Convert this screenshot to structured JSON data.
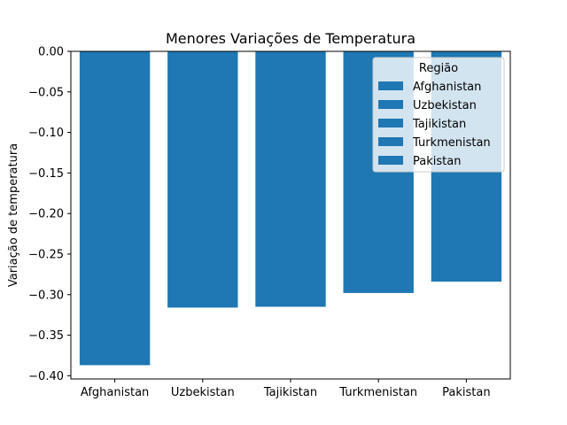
{
  "chart_data": {
    "type": "bar",
    "title": "Menores Variações de Temperatura",
    "xlabel": "",
    "ylabel": "Variação de temperatura",
    "categories": [
      "Afghanistan",
      "Uzbekistan",
      "Tajikistan",
      "Turkmenistan",
      "Pakistan"
    ],
    "values": [
      -0.387,
      -0.316,
      -0.315,
      -0.298,
      -0.284
    ],
    "ylim": [
      -0.404,
      0.0
    ],
    "yticks": [
      "0.00",
      "−0.05",
      "−0.10",
      "−0.15",
      "−0.20",
      "−0.25",
      "−0.30",
      "−0.35",
      "−0.40"
    ],
    "bar_color": "#1f77b4",
    "grid": false,
    "legend": {
      "title": "Região",
      "placement": "top-right",
      "entries": [
        "Afghanistan",
        "Uzbekistan",
        "Tajikistan",
        "Turkmenistan",
        "Pakistan"
      ]
    }
  }
}
